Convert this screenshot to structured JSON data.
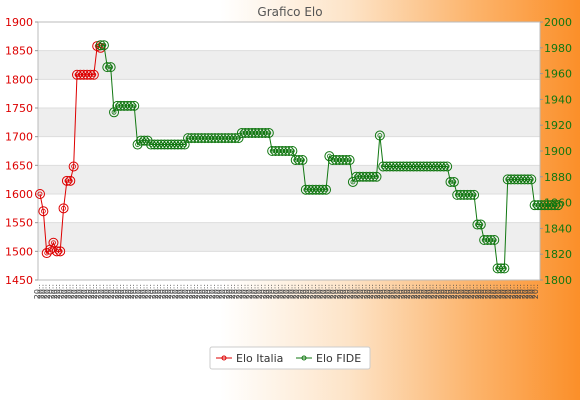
{
  "chart_data": {
    "type": "line",
    "title": "Grafico Elo",
    "y_left": {
      "min": 1450,
      "max": 1900,
      "ticks": [
        1450,
        1500,
        1550,
        1600,
        1650,
        1700,
        1750,
        1800,
        1850,
        1900
      ],
      "color": "#dd0000"
    },
    "y_right": {
      "min": 1800,
      "max": 2000,
      "ticks": [
        1800,
        1820,
        1840,
        1860,
        1880,
        1900,
        1920,
        1940,
        1960,
        1980,
        2000
      ],
      "color": "#117711"
    },
    "grid": "horizontal bands",
    "legend_position": "bottom",
    "x_tick_label_pattern": "20..",
    "x_count": 149,
    "series": [
      {
        "name": "Elo Italia",
        "axis": "left",
        "color": "#dd0000",
        "start_index": 0,
        "values": [
          1600,
          1570,
          1497,
          1503,
          1515,
          1500,
          1500,
          1575,
          1623,
          1623,
          1648,
          1808,
          1808,
          1808,
          1808,
          1808,
          1808,
          1858,
          1855
        ]
      },
      {
        "name": "Elo FIDE",
        "axis": "right",
        "color": "#117711",
        "start_index": 18,
        "values": [
          1982,
          1982,
          1965,
          1965,
          1930,
          1935,
          1935,
          1935,
          1935,
          1935,
          1935,
          1905,
          1908,
          1908,
          1908,
          1905,
          1905,
          1905,
          1905,
          1905,
          1905,
          1905,
          1905,
          1905,
          1905,
          1905,
          1910,
          1910,
          1910,
          1910,
          1910,
          1910,
          1910,
          1910,
          1910,
          1910,
          1910,
          1910,
          1910,
          1910,
          1910,
          1910,
          1914,
          1914,
          1914,
          1914,
          1914,
          1914,
          1914,
          1914,
          1914,
          1900,
          1900,
          1900,
          1900,
          1900,
          1900,
          1900,
          1893,
          1893,
          1893,
          1870,
          1870,
          1870,
          1870,
          1870,
          1870,
          1870,
          1896,
          1893,
          1893,
          1893,
          1893,
          1893,
          1893,
          1876,
          1880,
          1880,
          1880,
          1880,
          1880,
          1880,
          1880,
          1912,
          1888,
          1888,
          1888,
          1888,
          1888,
          1888,
          1888,
          1888,
          1888,
          1888,
          1888,
          1888,
          1888,
          1888,
          1888,
          1888,
          1888,
          1888,
          1888,
          1888,
          1876,
          1876,
          1866,
          1866,
          1866,
          1866,
          1866,
          1866,
          1843,
          1843,
          1831,
          1831,
          1831,
          1831,
          1809,
          1809,
          1809,
          1878,
          1878,
          1878,
          1878,
          1878,
          1878,
          1878,
          1878,
          1858,
          1858,
          1858,
          1858,
          1858,
          1858,
          1858,
          1858
        ]
      }
    ]
  }
}
